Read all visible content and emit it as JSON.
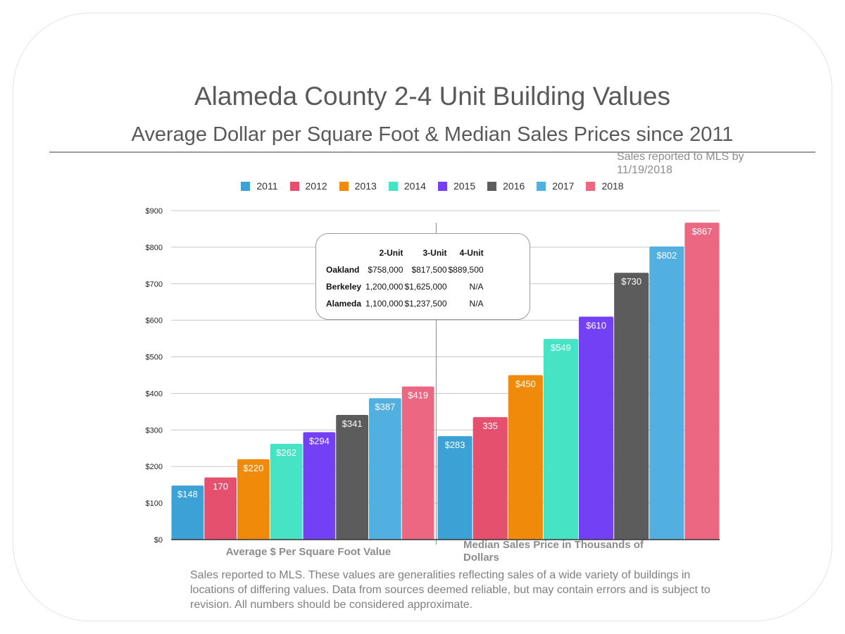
{
  "title": "Alameda County 2-4 Unit Building Values",
  "subtitle": "Average Dollar per Square Foot & Median Sales Prices since 2011",
  "note": "Sales reported to MLS by 11/19/2018",
  "colors": [
    "#3ca2d6",
    "#e5506e",
    "#f08a0b",
    "#47e3c5",
    "#7440f5",
    "#5c5c5c",
    "#52b0e0",
    "#ec6882"
  ],
  "chart_data": {
    "type": "bar",
    "ylim": [
      0,
      900
    ],
    "yticks": [
      "$0",
      "$100",
      "$200",
      "$300",
      "$400",
      "$500",
      "$600",
      "$700",
      "$800",
      "$900"
    ],
    "grid": true,
    "legend_position": "top",
    "series_names": [
      "2011",
      "2012",
      "2013",
      "2014",
      "2015",
      "2016",
      "2017",
      "2018"
    ],
    "groups": [
      {
        "label": "Average $ Per Square Foot Value",
        "values": [
          148,
          170,
          220,
          262,
          294,
          341,
          387,
          419
        ],
        "data_labels": [
          "$148",
          "170",
          "$220",
          "$262",
          "$294",
          "$341",
          "$387",
          "$419"
        ]
      },
      {
        "label": "Median Sales Price in Thousands of Dollars",
        "values": [
          283,
          335,
          450,
          549,
          610,
          730,
          802,
          867
        ],
        "data_labels": [
          "$283",
          "335",
          "$450",
          "$549",
          "$610",
          "$730",
          "$802",
          "$867"
        ]
      }
    ]
  },
  "table": {
    "headers": [
      "",
      "2-Unit",
      "3-Unit",
      "4-Unit"
    ],
    "rows": [
      [
        "Oakland",
        "$758,000",
        "$817,500",
        "$889,500"
      ],
      [
        "Berkeley",
        "1,200,000",
        "$1,625,000",
        "N/A"
      ],
      [
        "Alameda",
        "1,100,000",
        "$1,237,500",
        "N/A"
      ]
    ]
  },
  "footnote": "Sales reported to MLS. These values are generalities reflecting sales of a wide variety of buildings in locations of differing values. Data from sources deemed reliable, but may contain errors and is subject to revision.  All numbers should be considered approximate."
}
